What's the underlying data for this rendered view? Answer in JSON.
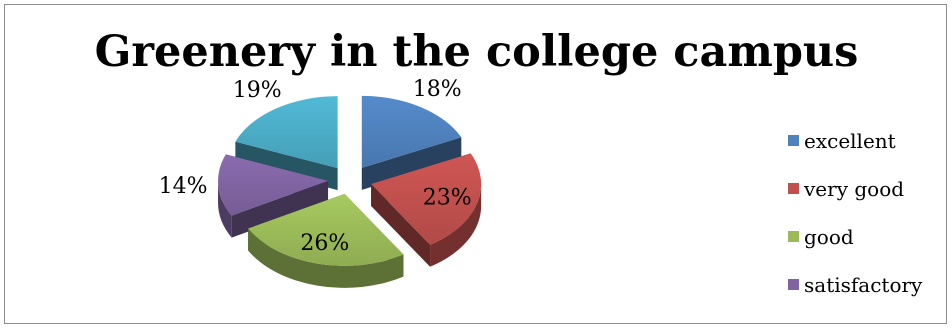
{
  "chart_data": {
    "type": "pie",
    "title": "Greenery in the college campus",
    "series": [
      {
        "name": "excellent",
        "value": 18,
        "label": "18%",
        "color": "#4f81bd"
      },
      {
        "name": "very good",
        "value": 23,
        "label": "23%",
        "color": "#c0504d"
      },
      {
        "name": "good",
        "value": 26,
        "label": "26%",
        "color": "#9bbb59"
      },
      {
        "name": "satisfactory",
        "value": 14,
        "label": "14%",
        "color": "#8064a2"
      },
      {
        "name": "",
        "value": 19,
        "label": "19%",
        "color": "#4bacc6"
      }
    ],
    "legend_position": "right",
    "style": "3d-exploded"
  }
}
